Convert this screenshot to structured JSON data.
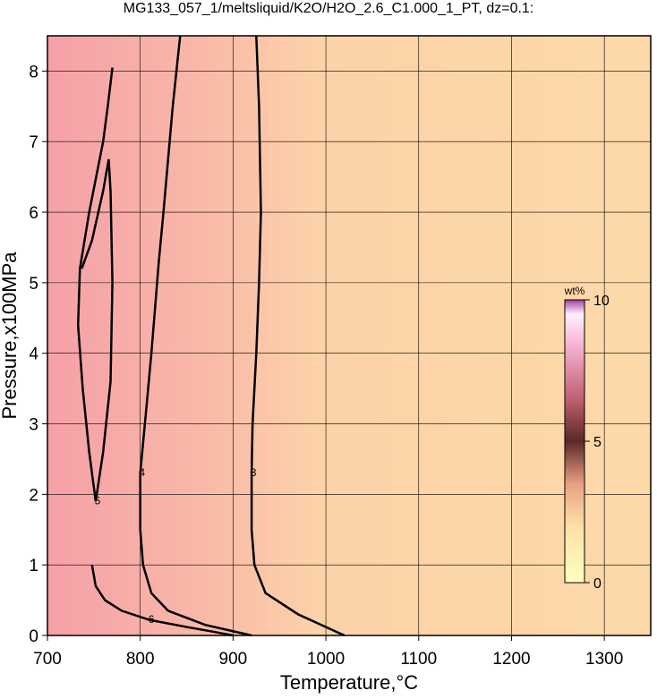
{
  "chart_data": {
    "type": "contour",
    "title": "MG133_057_1/meltsliquid/K2O/H2O_2.6_C1.000_1_PT, dz=0.1:",
    "x_label": "Temperature,°C",
    "y_label": "Pressure,x100MPa",
    "xlim": [
      700,
      1350
    ],
    "ylim": [
      0,
      8.5
    ],
    "xticks": [
      700,
      800,
      900,
      1000,
      1100,
      1200,
      1300
    ],
    "yticks": [
      0,
      1,
      2,
      3,
      4,
      5,
      6,
      7,
      8
    ],
    "grid": true,
    "contours": [
      {
        "level": 3,
        "x": [
          925,
          928,
          930,
          928,
          925,
          921,
          920,
          920,
          923,
          935,
          970,
          1020
        ],
        "y": [
          8.5,
          7.5,
          6,
          5,
          4,
          3,
          2.3,
          1.5,
          1,
          0.6,
          0.3,
          0
        ]
      },
      {
        "level": 4,
        "x": [
          843,
          835,
          825,
          820,
          812,
          805,
          800,
          800,
          803,
          812,
          830,
          870,
          920
        ],
        "y": [
          8.5,
          7.5,
          6,
          5.3,
          4,
          3,
          2.3,
          1.5,
          1,
          0.6,
          0.35,
          0.15,
          0
        ]
      },
      {
        "level": 5,
        "x": [
          770,
          765,
          760,
          745,
          735,
          733,
          738,
          745,
          752,
          760,
          768,
          770,
          768,
          766,
          760,
          748,
          737
        ],
        "y": [
          8.05,
          7.5,
          7,
          6,
          5.2,
          4.4,
          3.5,
          2.6,
          1.9,
          2.6,
          3.6,
          5,
          6.3,
          6.75,
          6.3,
          5.6,
          5.2
        ]
      },
      {
        "level": 6,
        "x": [
          748,
          752,
          762,
          780,
          810,
          850,
          880,
          900
        ],
        "y": [
          1.0,
          0.7,
          0.5,
          0.35,
          0.22,
          0.12,
          0.05,
          0
        ]
      }
    ],
    "colorbar": {
      "label": "wt%",
      "lim": [
        0,
        10
      ],
      "ticks": [
        0,
        5,
        10
      ]
    }
  }
}
